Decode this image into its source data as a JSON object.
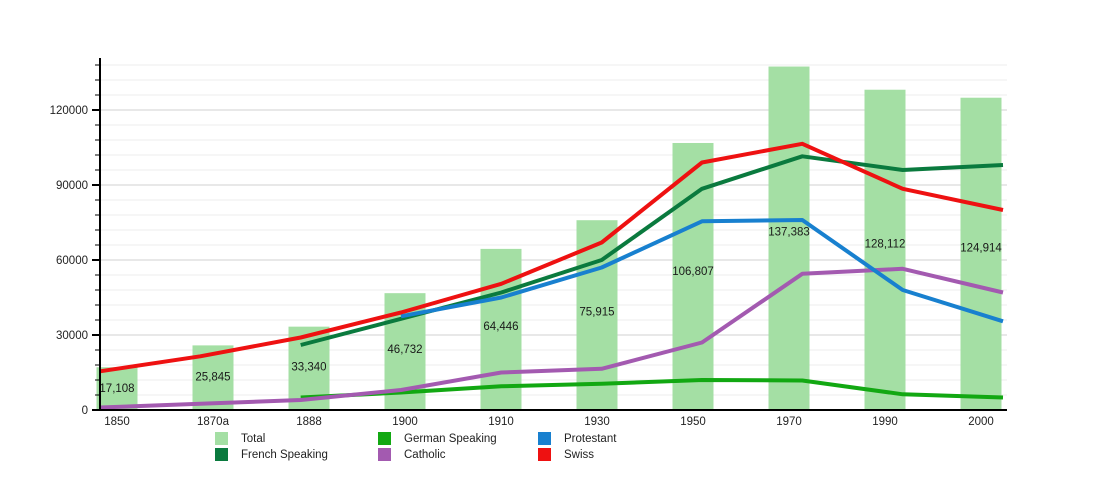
{
  "chart_data": {
    "type": "bar",
    "overlay_type": "line",
    "title": "",
    "categories": [
      "1850",
      "1870a",
      "1888",
      "1900",
      "1910",
      "1930",
      "1950",
      "1970",
      "1990",
      "2000"
    ],
    "bars": {
      "name": "Total",
      "color": "#a4dfa4",
      "values": [
        17108,
        25845,
        33340,
        46732,
        64446,
        75915,
        106807,
        137383,
        128112,
        124914
      ],
      "labels": [
        "17,108",
        "25,845",
        "33,340",
        "46,732",
        "64,446",
        "75,915",
        "106,807",
        "137,383",
        "128,112",
        "124,914"
      ]
    },
    "line_series": [
      {
        "name": "German Speaking",
        "color": "#12a812",
        "values": [
          null,
          null,
          5000,
          7000,
          9500,
          10500,
          12000,
          11800,
          6300,
          5000
        ]
      },
      {
        "name": "French Speaking",
        "color": "#0a7a3e",
        "values": [
          null,
          null,
          26000,
          36500,
          47000,
          60000,
          88500,
          101500,
          96000,
          98000
        ]
      },
      {
        "name": "Catholic",
        "color": "#a35ab0",
        "values": [
          1000,
          2500,
          4000,
          8000,
          15000,
          16500,
          27000,
          54500,
          56500,
          47000
        ]
      },
      {
        "name": "Protestant",
        "color": "#1880cf",
        "values": [
          null,
          null,
          null,
          37500,
          45000,
          57000,
          75500,
          76000,
          48000,
          35500
        ]
      },
      {
        "name": "Swiss",
        "color": "#ee1111",
        "values": [
          15500,
          21500,
          29000,
          39000,
          50500,
          67000,
          99000,
          106500,
          88500,
          80000
        ]
      }
    ],
    "ylim": [
      0,
      140000
    ],
    "yticks": [
      {
        "value": 0,
        "label": "0"
      },
      {
        "value": 30000,
        "label": "30000"
      },
      {
        "value": 60000,
        "label": "60000"
      },
      {
        "value": 90000,
        "label": "90000"
      },
      {
        "value": 120000,
        "label": "120000"
      }
    ],
    "minor_grid_step": 6000,
    "grid": "horizontal only",
    "legend_position": "bottom",
    "legend": [
      {
        "label": "Total",
        "color": "#a4dfa4"
      },
      {
        "label": "German Speaking",
        "color": "#12a812"
      },
      {
        "label": "Protestant",
        "color": "#1880cf"
      },
      {
        "label": "French Speaking",
        "color": "#0a7a3e"
      },
      {
        "label": "Catholic",
        "color": "#a35ab0"
      },
      {
        "label": "Swiss",
        "color": "#ee1111"
      }
    ]
  }
}
